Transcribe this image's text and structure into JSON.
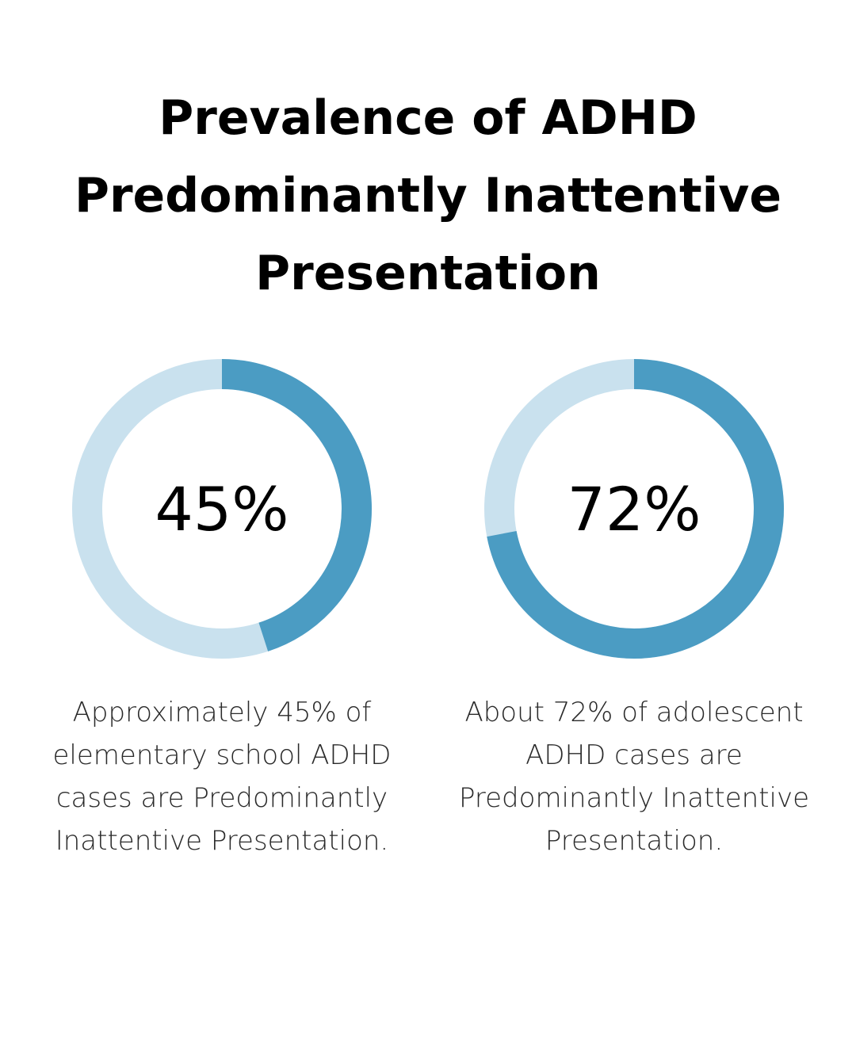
{
  "colors": {
    "track": "#c9e1ee",
    "fill": "#4b9cc3",
    "text": "#000000"
  },
  "title_lines": [
    "Prevalence of ADHD",
    "Predominantly Inattentive",
    "Presentation"
  ],
  "chart_data": [
    {
      "type": "donut",
      "value": 45,
      "max": 100,
      "label": "45%",
      "caption_lines": [
        "Approximately 45% of",
        "elementary school ADHD",
        "cases are Predominantly",
        "Inattentive Presentation."
      ]
    },
    {
      "type": "donut",
      "value": 72,
      "max": 100,
      "label": "72%",
      "caption_lines": [
        "About 72% of adolescent",
        "ADHD cases are",
        "Predominantly Inattentive",
        "Presentation."
      ]
    }
  ]
}
